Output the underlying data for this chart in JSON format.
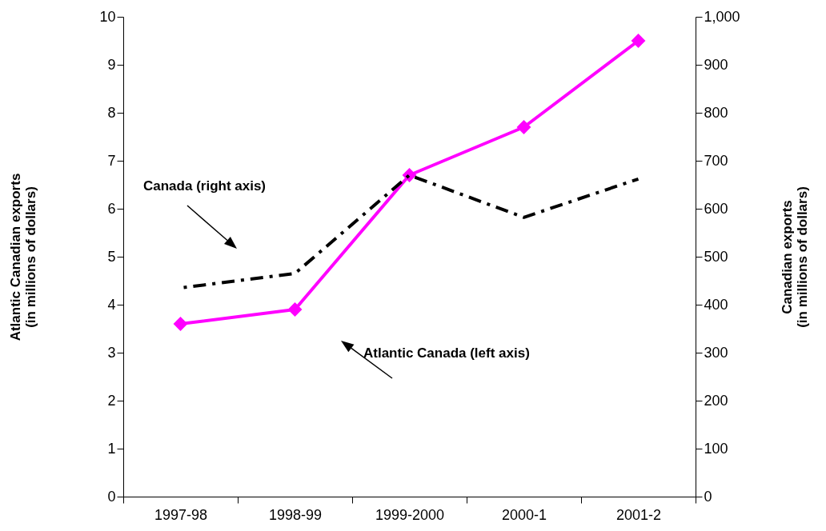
{
  "chart_data": {
    "type": "line",
    "categories": [
      "1997-98",
      "1998-99",
      "1999-2000",
      "2000-1",
      "2001-2"
    ],
    "ylabel": "Atlantic Canadian exports\n(in millions of dollars)",
    "y2label": "Canadian exports\n(in millions of dollars)",
    "ylim": [
      0,
      10
    ],
    "yticks": [
      0,
      1,
      2,
      3,
      4,
      5,
      6,
      7,
      8,
      9,
      10
    ],
    "y2lim": [
      0,
      1000
    ],
    "y2ticks": [
      0,
      100,
      200,
      300,
      400,
      500,
      600,
      700,
      800,
      900,
      {
        "value": 1000,
        "label": "1,000"
      }
    ],
    "grid": false,
    "annotations": [
      "Canada (right axis)",
      "Atlantic Canada (left axis)"
    ],
    "series": [
      {
        "color": "#ff00ff",
        "marker": "diamond",
        "line_style": "solid",
        "values": [
          3.6,
          3.9,
          6.7,
          7.7,
          9.5
        ]
      },
      {
        "color": "#000000",
        "axis": "y2",
        "marker": "none",
        "line_style": "dashed",
        "values": [
          435,
          465,
          670,
          582,
          662
        ]
      }
    ]
  }
}
